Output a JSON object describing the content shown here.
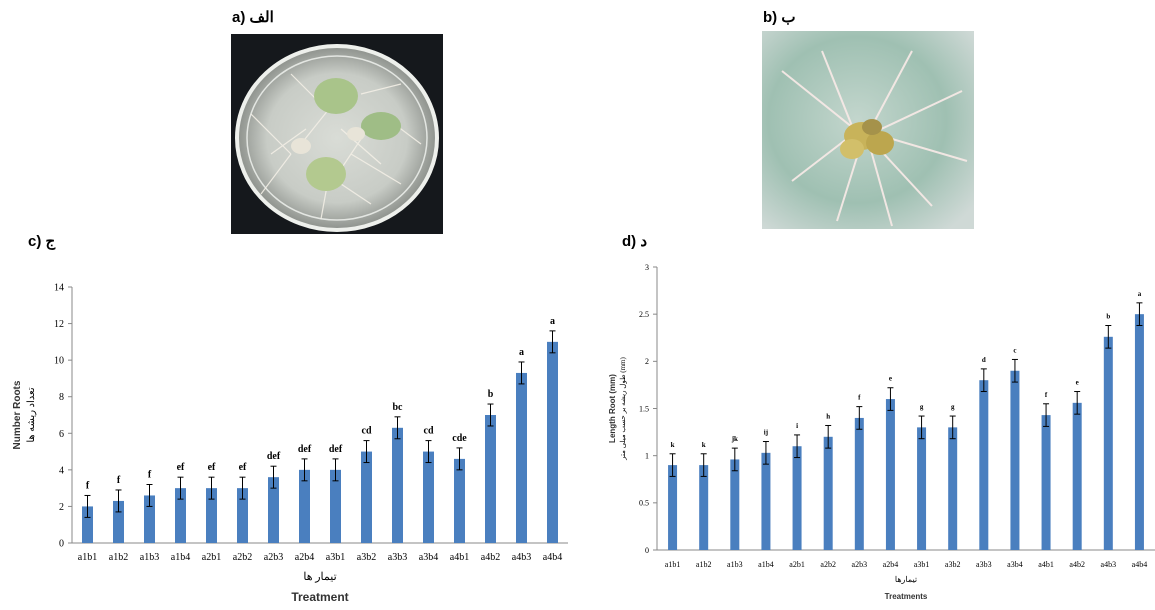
{
  "panels": {
    "a": "a) الف",
    "b": "b) ب",
    "c": "c) ج",
    "d": "d) د"
  },
  "colors": {
    "bar": "#4a7fbf",
    "axis": "#888888",
    "error": "#000000"
  },
  "chart_data": [
    {
      "type": "bar",
      "title": "",
      "xlabel": "Treatment",
      "xlabel_fa": "تیمار ها",
      "ylabel": "Number Roots",
      "ylabel_fa": "تعداد ریشه ها",
      "ylim": [
        0,
        14
      ],
      "yticks": [
        0,
        2,
        4,
        6,
        8,
        10,
        12,
        14
      ],
      "grid": false,
      "categories": [
        "a1b1",
        "a1b2",
        "a1b3",
        "a1b4",
        "a2b1",
        "a2b2",
        "a2b3",
        "a2b4",
        "a3b1",
        "a3b2",
        "a3b3",
        "a3b4",
        "a4b1",
        "a4b2",
        "a4b3",
        "a4b4"
      ],
      "values": [
        2.0,
        2.3,
        2.6,
        3.0,
        3.0,
        3.0,
        3.6,
        4.0,
        4.0,
        5.0,
        6.3,
        5.0,
        4.6,
        7.0,
        9.3,
        11.0
      ],
      "errors": [
        0.6,
        0.6,
        0.6,
        0.6,
        0.6,
        0.6,
        0.6,
        0.6,
        0.6,
        0.6,
        0.6,
        0.6,
        0.6,
        0.6,
        0.6,
        0.6
      ],
      "letters": [
        "f",
        "f",
        "f",
        "ef",
        "ef",
        "ef",
        "def",
        "def",
        "def",
        "cd",
        "bc",
        "cd",
        "cde",
        "b",
        "a",
        "a"
      ]
    },
    {
      "type": "bar",
      "title": "",
      "xlabel": "Treatments",
      "xlabel_fa": "تیمارها",
      "ylabel": "Length Root (mm)",
      "ylabel_fa": "طول ریشه بر حسب میلی متر (mm)",
      "ylim": [
        0,
        3
      ],
      "yticks": [
        0,
        0.5,
        1,
        1.5,
        2,
        2.5,
        3
      ],
      "grid": false,
      "categories": [
        "a1b1",
        "a1b2",
        "a1b3",
        "a1b4",
        "a2b1",
        "a2b2",
        "a2b3",
        "a2b4",
        "a3b1",
        "a3b2",
        "a3b3",
        "a3b4",
        "a4b1",
        "a4b2",
        "a4b3",
        "a4b4"
      ],
      "values": [
        0.9,
        0.9,
        0.96,
        1.03,
        1.1,
        1.2,
        1.4,
        1.6,
        1.3,
        1.3,
        1.8,
        1.9,
        1.43,
        1.56,
        2.26,
        2.5
      ],
      "errors": [
        0.12,
        0.12,
        0.12,
        0.12,
        0.12,
        0.12,
        0.12,
        0.12,
        0.12,
        0.12,
        0.12,
        0.12,
        0.12,
        0.12,
        0.12,
        0.12
      ],
      "letters": [
        "k",
        "k",
        "jk",
        "ij",
        "i",
        "h",
        "f",
        "e",
        "g",
        "g",
        "d",
        "c",
        "f",
        "e",
        "b",
        "a"
      ]
    }
  ]
}
